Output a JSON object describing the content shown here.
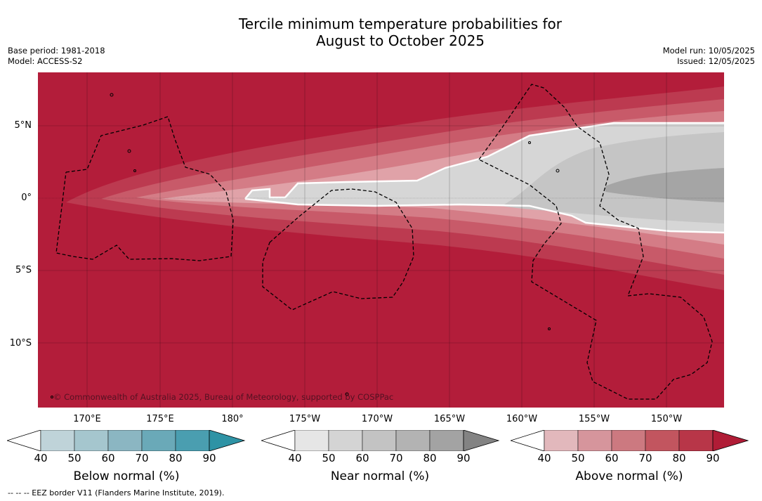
{
  "title": {
    "line1": "Tercile minimum temperature probabilities for",
    "line2": "August to October 2025"
  },
  "meta": {
    "base_period": "Base period: 1981-2018",
    "model": "Model: ACCESS-S2",
    "model_run": "Model run: 10/05/2025",
    "issued": "Issued: 12/05/2025"
  },
  "map": {
    "lat_labels": [
      "5°N",
      "0°",
      "5°S",
      "10°S"
    ],
    "lon_labels": [
      "170°E",
      "175°E",
      "180°",
      "175°W",
      "170°W",
      "165°W",
      "160°W",
      "155°W",
      "150°W"
    ],
    "copyright": "© Commonwealth of Australia 2025, Bureau of Meteorology, supported by COSPPac",
    "colors": {
      "above_90": "#b31d3a",
      "above_80": "#bc3a50",
      "above_70": "#c85a69",
      "above_60": "#d47c86",
      "above_50": "#e0a2a8",
      "near_50": "#d6d6d6",
      "near_60": "#c5c5c5",
      "near_70": "#a5a5a5"
    }
  },
  "legends": {
    "ticks": [
      "40",
      "50",
      "60",
      "70",
      "80",
      "90"
    ],
    "below": {
      "title": "Below normal (%)",
      "colors": [
        "#bfd3d9",
        "#a5c6ce",
        "#8bb6c2",
        "#6aa9b8",
        "#4a9eb0",
        "#2e93a5"
      ]
    },
    "near": {
      "title": "Near normal (%)",
      "colors": [
        "#e6e6e6",
        "#d4d4d4",
        "#c3c3c3",
        "#b3b3b3",
        "#a3a3a3",
        "#838383"
      ]
    },
    "above": {
      "title": "Above normal (%)",
      "colors": [
        "#e2b8bc",
        "#d6959c",
        "#cc7980",
        "#c2555f",
        "#b83648",
        "#b01c36"
      ]
    }
  },
  "footnote": "--  --  -- EEZ border V11 (Flanders Marine Institute, 2019)."
}
